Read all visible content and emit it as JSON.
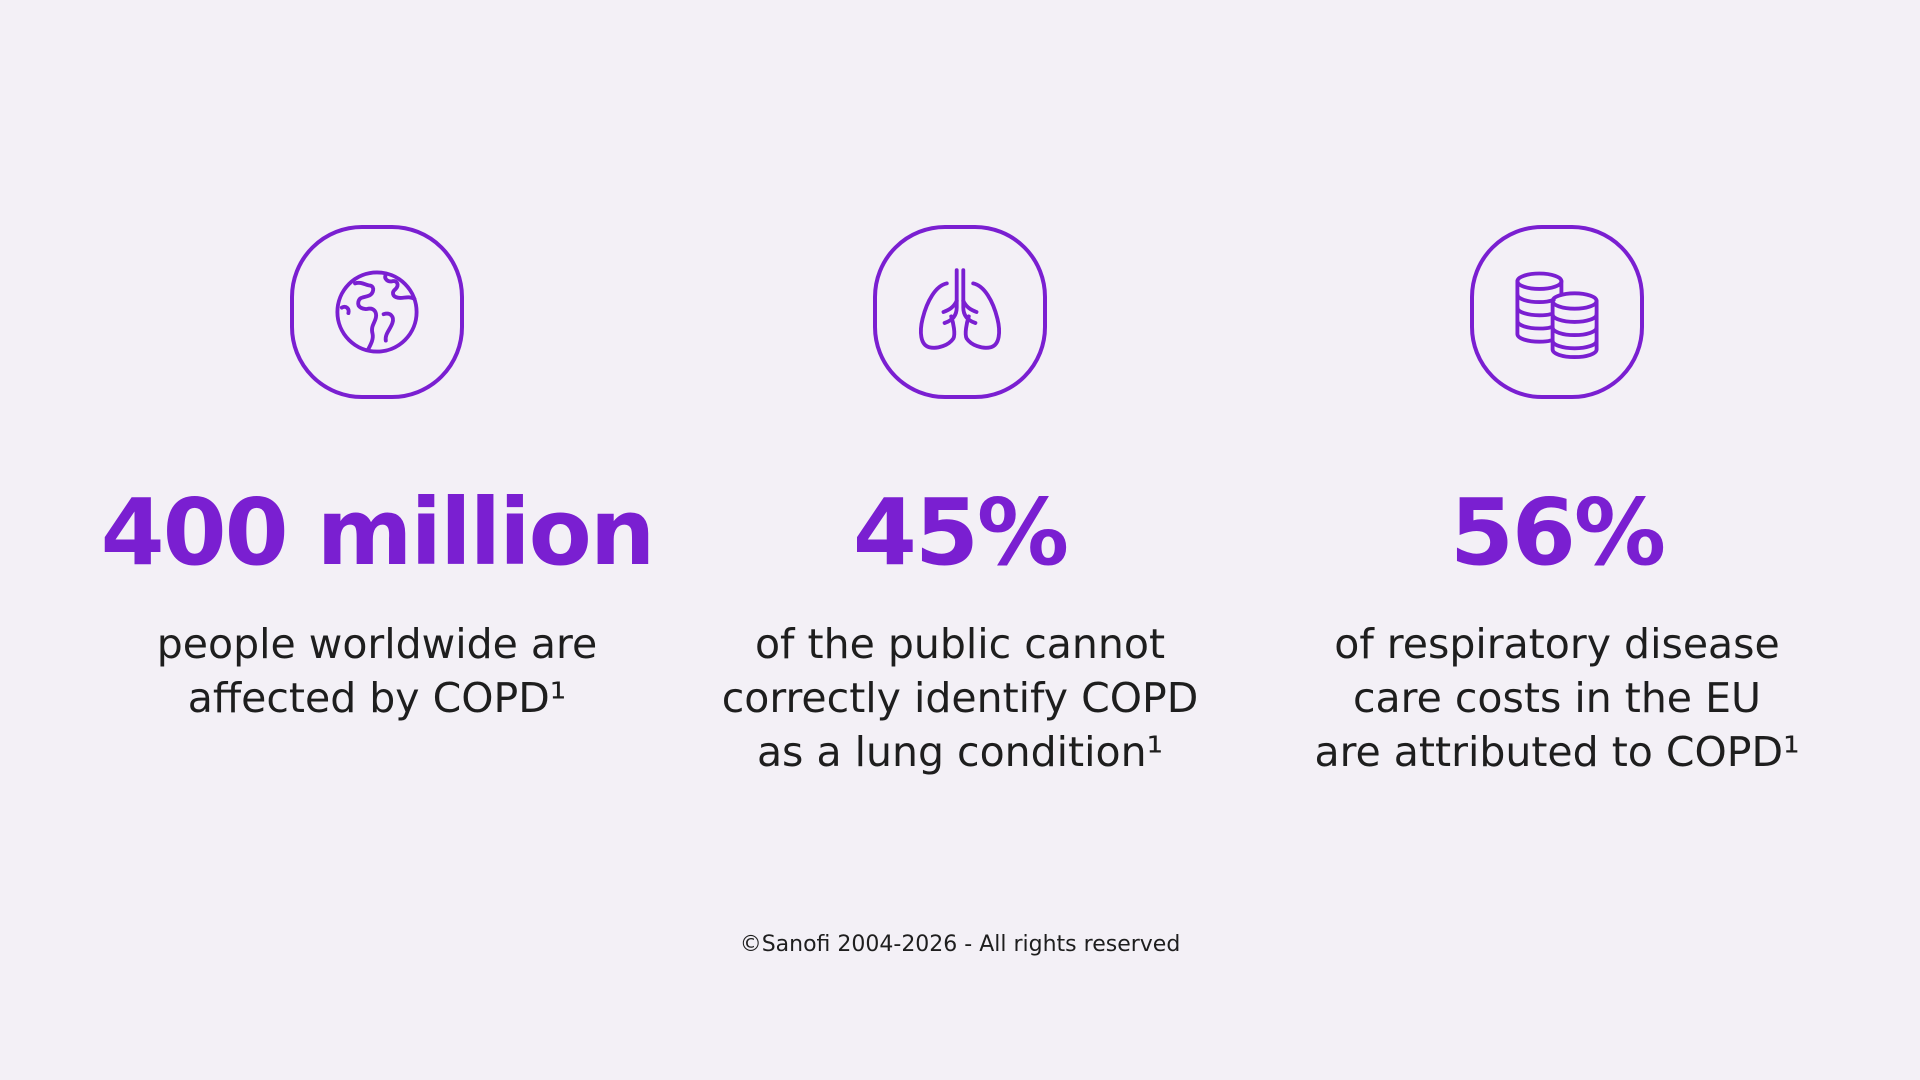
{
  "brand_color": "#7a1fd1",
  "background_color": "#f3f0f6",
  "stats": [
    {
      "icon": "globe-icon",
      "figure": "400 million",
      "lines": [
        "people worldwide are",
        "affected by COPD¹"
      ]
    },
    {
      "icon": "lungs-icon",
      "figure": "45%",
      "lines": [
        "of the public cannot",
        "correctly identify COPD",
        "as a lung condition¹"
      ]
    },
    {
      "icon": "coins-icon",
      "figure": "56%",
      "lines": [
        "of respiratory disease",
        "care costs in the EU",
        "are attributed to COPD¹"
      ]
    }
  ],
  "footer": {
    "copyright": "©Sanofi 2004-2026 - All rights reserved"
  }
}
